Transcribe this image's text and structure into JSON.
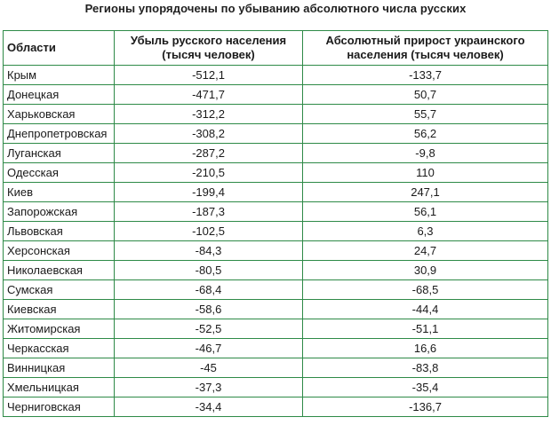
{
  "caption": "Регионы упорядочены по убыванию абсолютного числа русских",
  "table": {
    "headers": {
      "region": "Области",
      "russian_loss": "Убыль русского населения (тысяч человек)",
      "ukrainian_gain": "Абсолютный прирост украинского населения (тысяч человек)"
    },
    "rows": [
      {
        "region": "Крым",
        "russian_loss": "-512,1",
        "ukrainian_gain": "-133,7"
      },
      {
        "region": "Донецкая",
        "russian_loss": "-471,7",
        "ukrainian_gain": "50,7"
      },
      {
        "region": "Харьковская",
        "russian_loss": "-312,2",
        "ukrainian_gain": "55,7"
      },
      {
        "region": "Днепропетровская",
        "russian_loss": "-308,2",
        "ukrainian_gain": "56,2"
      },
      {
        "region": "Луганская",
        "russian_loss": "-287,2",
        "ukrainian_gain": "-9,8"
      },
      {
        "region": "Одесская",
        "russian_loss": "-210,5",
        "ukrainian_gain": "110"
      },
      {
        "region": "Киев",
        "russian_loss": "-199,4",
        "ukrainian_gain": "247,1"
      },
      {
        "region": "Запорожская",
        "russian_loss": "-187,3",
        "ukrainian_gain": "56,1"
      },
      {
        "region": "Львовская",
        "russian_loss": "-102,5",
        "ukrainian_gain": "6,3"
      },
      {
        "region": "Херсонская",
        "russian_loss": "-84,3",
        "ukrainian_gain": "24,7"
      },
      {
        "region": "Николаевская",
        "russian_loss": "-80,5",
        "ukrainian_gain": "30,9"
      },
      {
        "region": "Сумская",
        "russian_loss": "-68,4",
        "ukrainian_gain": "-68,5"
      },
      {
        "region": "Киевская",
        "russian_loss": "-58,6",
        "ukrainian_gain": "-44,4"
      },
      {
        "region": "Житомирская",
        "russian_loss": "-52,5",
        "ukrainian_gain": "-51,1"
      },
      {
        "region": "Черкасская",
        "russian_loss": "-46,7",
        "ukrainian_gain": "16,6"
      },
      {
        "region": "Винницкая",
        "russian_loss": "-45",
        "ukrainian_gain": "-83,8"
      },
      {
        "region": "Хмельницкая",
        "russian_loss": "-37,3",
        "ukrainian_gain": "-35,4"
      },
      {
        "region": "Черниговская",
        "russian_loss": "-34,4",
        "ukrainian_gain": "-136,7"
      }
    ]
  }
}
